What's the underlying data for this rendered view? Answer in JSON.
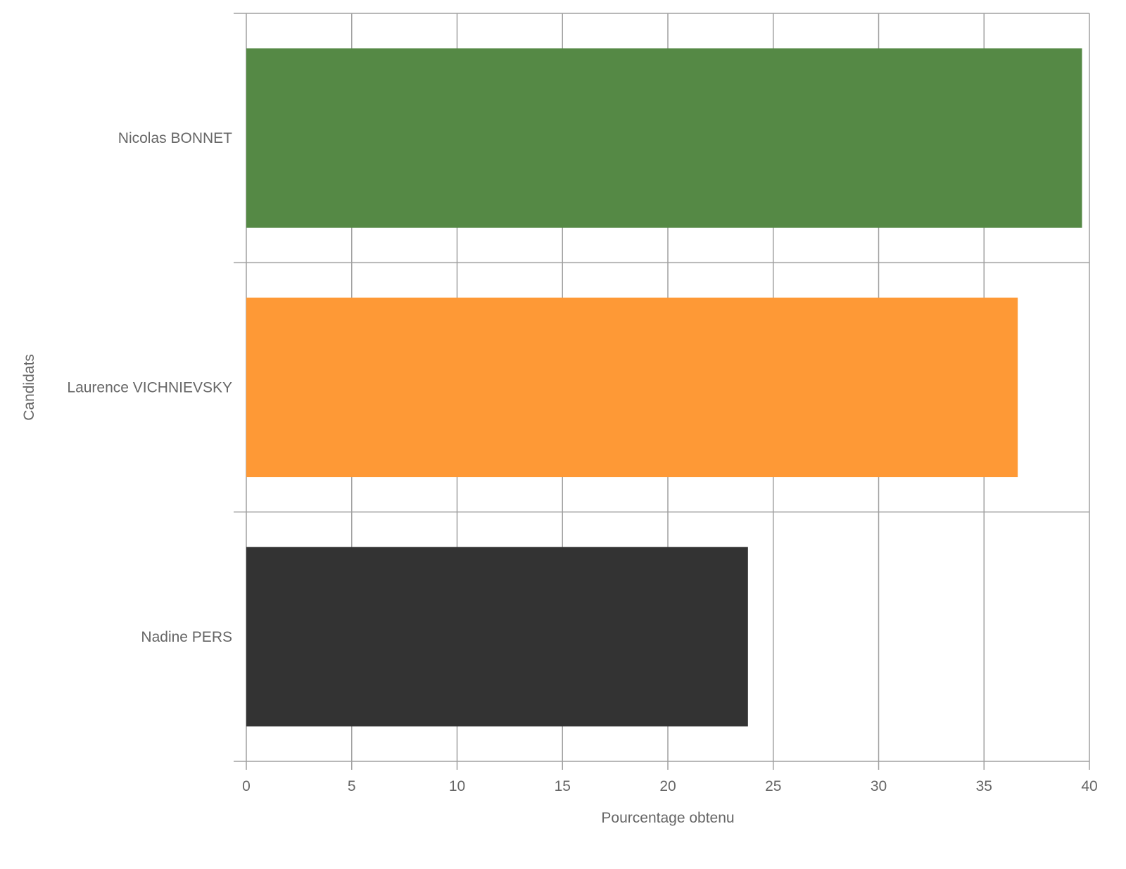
{
  "chart_data": {
    "type": "bar",
    "orientation": "horizontal",
    "categories": [
      "Nicolas BONNET",
      "Laurence VICHNIEVSKY",
      "Nadine PERS"
    ],
    "values": [
      39.65,
      36.6,
      23.8
    ],
    "colors": [
      "#558945",
      "#fe9936",
      "#333333"
    ],
    "xlabel": "Pourcentage obtenu",
    "ylabel": "Candidats",
    "xlim": [
      0,
      40
    ],
    "xticks": [
      0,
      5,
      10,
      15,
      20,
      25,
      30,
      35,
      40
    ],
    "grid": true,
    "legend": "none"
  }
}
